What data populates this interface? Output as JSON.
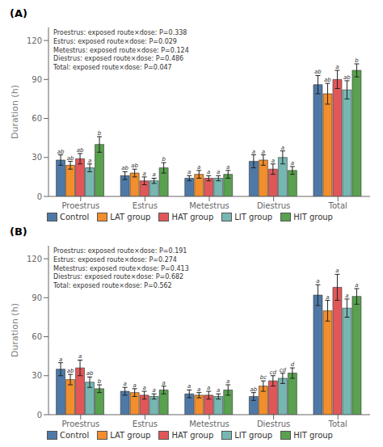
{
  "chart_data": [
    {
      "type": "bar",
      "title": "(A)",
      "annotation": "Proestrus: exposed route×dose: P=0.338\nEstrus: exposed route×dose: P=0.029\nMetestrus: exposed route×dose: P=0.124\nDiestrus: exposed route×dose: P=0.486\nTotal: exposed route×dose: P=0.047",
      "ylabel": "Duration (h)",
      "categories": [
        "Proestrus",
        "Estrus",
        "Metestrus",
        "Diestrus",
        "Total"
      ],
      "series": [
        {
          "name": "Control",
          "color": "#4e79a7",
          "values": [
            28,
            16,
            14,
            27,
            86
          ],
          "errors": [
            4,
            3,
            2,
            5,
            7
          ],
          "labels": [
            "ab",
            "ab",
            "a",
            "a",
            "ab"
          ]
        },
        {
          "name": "LAT group",
          "color": "#f28e2b",
          "values": [
            24,
            18,
            17,
            28,
            79
          ],
          "errors": [
            3,
            3,
            3,
            4,
            8
          ],
          "labels": [
            "ab",
            "ab",
            "a",
            "a",
            "ab"
          ]
        },
        {
          "name": "HAT group",
          "color": "#e15759",
          "values": [
            29,
            12,
            14,
            21,
            90
          ],
          "errors": [
            4,
            3,
            2,
            4,
            7
          ],
          "labels": [
            "ab",
            "a",
            "a",
            "a",
            "a"
          ]
        },
        {
          "name": "LIT group",
          "color": "#76b7b2",
          "values": [
            22,
            12,
            14,
            30,
            82
          ],
          "errors": [
            3,
            2,
            2,
            5,
            7
          ],
          "labels": [
            "a",
            "a",
            "a",
            "a",
            "ab"
          ]
        },
        {
          "name": "HIT group",
          "color": "#59a14f",
          "values": [
            40,
            22,
            17,
            20,
            97
          ],
          "errors": [
            6,
            4,
            3,
            3,
            5
          ],
          "labels": [
            "b",
            "b",
            "a",
            "a",
            "b"
          ]
        }
      ],
      "ylim": [
        0,
        130
      ],
      "yticks": [
        0,
        30,
        60,
        90,
        120
      ],
      "grid": false,
      "legend": "bottom"
    },
    {
      "type": "bar",
      "title": "(B)",
      "annotation": "Proestrus: exposed route×dose: P=0.191\nEstrus: exposed route×dose: P=0.274\nMetestrus: exposed route×dose: P=0.413\nDiestrus: exposed route×dose: P=0.682\nTotal: exposed route×dose: P=0.562",
      "ylabel": "Duration (h)",
      "categories": [
        "Proestrus",
        "Estrus",
        "Metestrus",
        "Diestrus",
        "Total"
      ],
      "series": [
        {
          "name": "Control",
          "color": "#4e79a7",
          "values": [
            35,
            18,
            16,
            14,
            92
          ],
          "errors": [
            5,
            3,
            3,
            3,
            8
          ],
          "labels": [
            "a",
            "a",
            "a",
            "ab",
            "a"
          ]
        },
        {
          "name": "LAT group",
          "color": "#f28e2b",
          "values": [
            27,
            17,
            15,
            22,
            80
          ],
          "errors": [
            4,
            3,
            2,
            4,
            8
          ],
          "labels": [
            "ab",
            "a",
            "a",
            "bc",
            "a"
          ]
        },
        {
          "name": "HAT group",
          "color": "#e15759",
          "values": [
            36,
            15,
            15,
            26,
            98
          ],
          "errors": [
            6,
            3,
            3,
            4,
            10
          ],
          "labels": [
            "a",
            "a",
            "a",
            "cd",
            "a"
          ]
        },
        {
          "name": "LIT group",
          "color": "#76b7b2",
          "values": [
            25,
            14,
            14,
            28,
            82
          ],
          "errors": [
            4,
            2,
            2,
            4,
            7
          ],
          "labels": [
            "ab",
            "a",
            "a",
            "cd",
            "a"
          ]
        },
        {
          "name": "HIT group",
          "color": "#59a14f",
          "values": [
            20,
            19,
            19,
            32,
            91
          ],
          "errors": [
            3,
            3,
            4,
            4,
            6
          ],
          "labels": [
            "b",
            "a",
            "a",
            "d",
            "a"
          ]
        }
      ],
      "ylim": [
        0,
        130
      ],
      "yticks": [
        0,
        30,
        60,
        90,
        120
      ],
      "grid": false,
      "legend": "bottom"
    }
  ]
}
